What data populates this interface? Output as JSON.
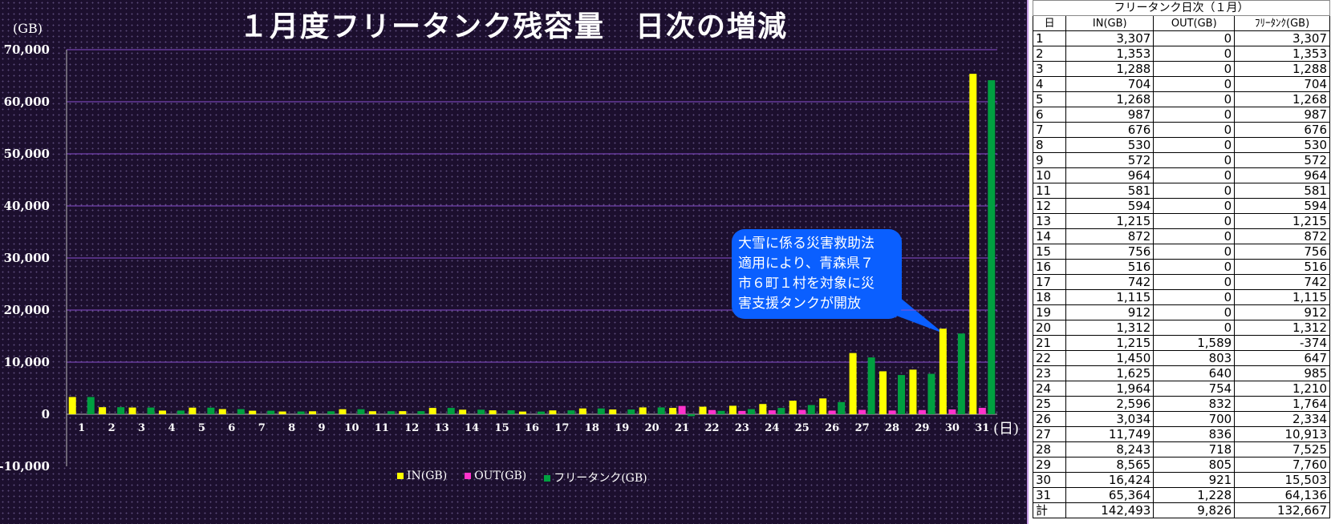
{
  "chart_data": {
    "type": "bar",
    "title": "１月度フリータンク残容量　日次の増減",
    "ylabel": "(GB)",
    "xlabel": "(日)",
    "ylim": [
      -10000,
      70000
    ],
    "yticks": [
      "-10,000",
      "0",
      "10,000",
      "20,000",
      "30,000",
      "40,000",
      "50,000",
      "60,000",
      "70,000"
    ],
    "ytick_values": [
      -10000,
      0,
      10000,
      20000,
      30000,
      40000,
      50000,
      60000,
      70000
    ],
    "categories": [
      "1",
      "2",
      "3",
      "4",
      "5",
      "6",
      "7",
      "8",
      "9",
      "10",
      "11",
      "12",
      "13",
      "14",
      "15",
      "16",
      "17",
      "18",
      "19",
      "20",
      "21",
      "22",
      "23",
      "24",
      "25",
      "26",
      "27",
      "28",
      "29",
      "30",
      "31"
    ],
    "series": [
      {
        "name": "IN(GB)",
        "color": "#ffff00",
        "values": [
          3307,
          1353,
          1288,
          704,
          1268,
          987,
          676,
          530,
          572,
          964,
          581,
          594,
          1215,
          872,
          756,
          516,
          742,
          1115,
          912,
          1312,
          1215,
          1450,
          1625,
          1964,
          2596,
          3034,
          11749,
          8243,
          8565,
          16424,
          65364
        ]
      },
      {
        "name": "OUT(GB)",
        "color": "#ff33cc",
        "values": [
          0,
          0,
          0,
          0,
          0,
          0,
          0,
          0,
          0,
          0,
          0,
          0,
          0,
          0,
          0,
          0,
          0,
          0,
          0,
          0,
          1589,
          803,
          640,
          754,
          832,
          700,
          836,
          718,
          805,
          921,
          1228
        ]
      },
      {
        "name": "フリータンク(GB)",
        "color": "#00a040",
        "values": [
          3307,
          1353,
          1288,
          704,
          1268,
          987,
          676,
          530,
          572,
          964,
          581,
          594,
          1215,
          872,
          756,
          516,
          742,
          1115,
          912,
          1312,
          -374,
          647,
          985,
          1210,
          1764,
          2334,
          10913,
          7525,
          7760,
          15503,
          64136
        ]
      }
    ],
    "legend": "bottom",
    "grid": true,
    "annotation": "大雪に係る災害救助法適用により、青森県７市６町１村を対象に災害支援タンクが開放"
  },
  "callout_lines": [
    "大雪に係る災害救助法",
    "適用により、青森県７",
    "市６町１村を対象に災",
    "害支援タンクが開放"
  ],
  "table": {
    "title": "フリータンク日次（１月）",
    "headers": [
      "日",
      "IN(GB)",
      "OUT(GB)",
      "ﾌﾘｰﾀﾝｸ(GB)"
    ],
    "rows": [
      [
        "1",
        "3,307",
        "0",
        "3,307"
      ],
      [
        "2",
        "1,353",
        "0",
        "1,353"
      ],
      [
        "3",
        "1,288",
        "0",
        "1,288"
      ],
      [
        "4",
        "704",
        "0",
        "704"
      ],
      [
        "5",
        "1,268",
        "0",
        "1,268"
      ],
      [
        "6",
        "987",
        "0",
        "987"
      ],
      [
        "7",
        "676",
        "0",
        "676"
      ],
      [
        "8",
        "530",
        "0",
        "530"
      ],
      [
        "9",
        "572",
        "0",
        "572"
      ],
      [
        "10",
        "964",
        "0",
        "964"
      ],
      [
        "11",
        "581",
        "0",
        "581"
      ],
      [
        "12",
        "594",
        "0",
        "594"
      ],
      [
        "13",
        "1,215",
        "0",
        "1,215"
      ],
      [
        "14",
        "872",
        "0",
        "872"
      ],
      [
        "15",
        "756",
        "0",
        "756"
      ],
      [
        "16",
        "516",
        "0",
        "516"
      ],
      [
        "17",
        "742",
        "0",
        "742"
      ],
      [
        "18",
        "1,115",
        "0",
        "1,115"
      ],
      [
        "19",
        "912",
        "0",
        "912"
      ],
      [
        "20",
        "1,312",
        "0",
        "1,312"
      ],
      [
        "21",
        "1,215",
        "1,589",
        "-374"
      ],
      [
        "22",
        "1,450",
        "803",
        "647"
      ],
      [
        "23",
        "1,625",
        "640",
        "985"
      ],
      [
        "24",
        "1,964",
        "754",
        "1,210"
      ],
      [
        "25",
        "2,596",
        "832",
        "1,764"
      ],
      [
        "26",
        "3,034",
        "700",
        "2,334"
      ],
      [
        "27",
        "11,749",
        "836",
        "10,913"
      ],
      [
        "28",
        "8,243",
        "718",
        "7,525"
      ],
      [
        "29",
        "8,565",
        "805",
        "7,760"
      ],
      [
        "30",
        "16,424",
        "921",
        "15,503"
      ],
      [
        "31",
        "65,364",
        "1,228",
        "64,136"
      ]
    ],
    "total": [
      "計",
      "142,493",
      "9,826",
      "132,667"
    ]
  }
}
